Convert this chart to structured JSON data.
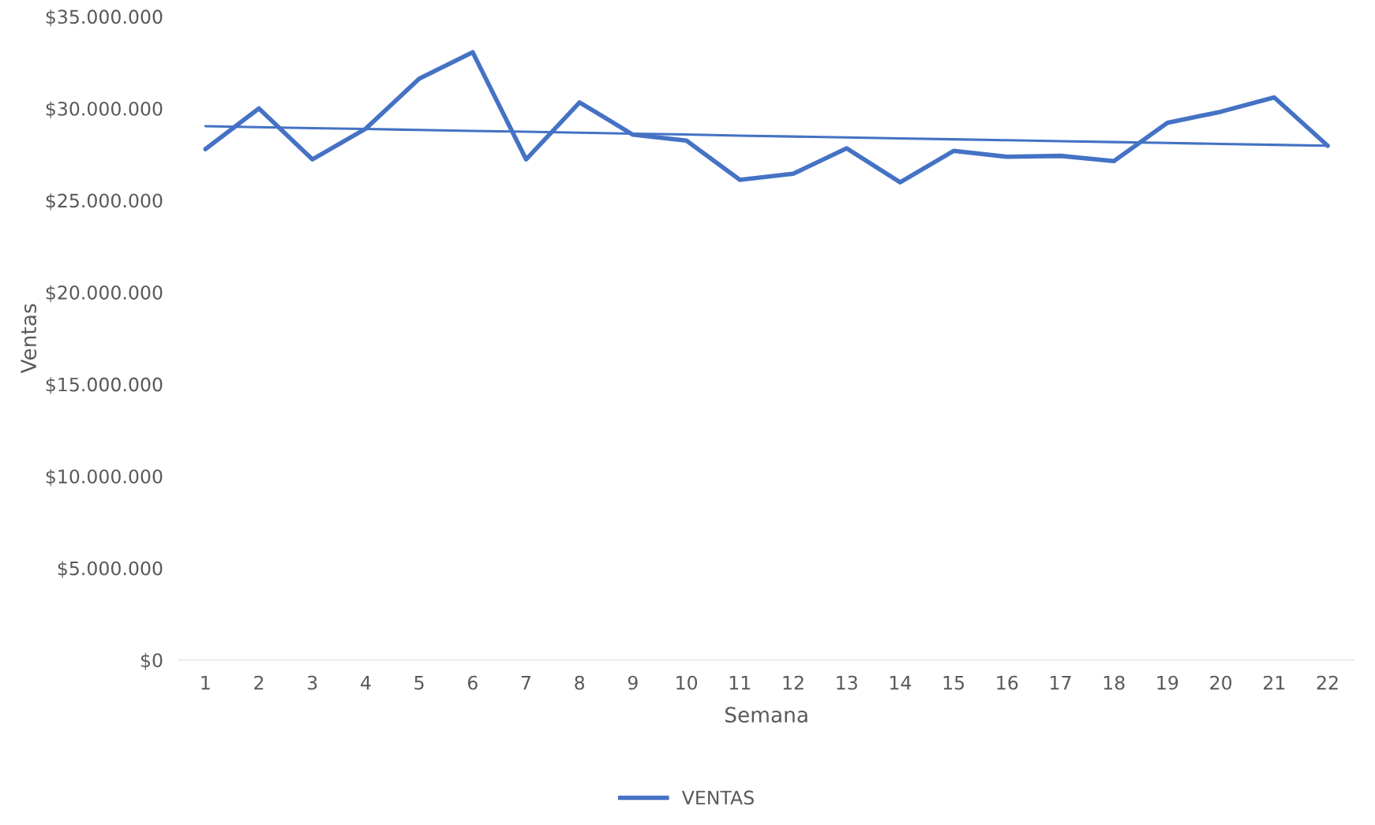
{
  "chart_data": {
    "type": "line",
    "xlabel": "Semana",
    "ylabel": "Ventas",
    "categories": [
      "1",
      "2",
      "3",
      "4",
      "5",
      "6",
      "7",
      "8",
      "9",
      "10",
      "11",
      "12",
      "13",
      "14",
      "15",
      "16",
      "17",
      "18",
      "19",
      "20",
      "21",
      "22"
    ],
    "series": [
      {
        "name": "VENTAS",
        "color": "#4472c4",
        "values": [
          27790000,
          30000000,
          27230000,
          28900000,
          31620000,
          33060000,
          27230000,
          30330000,
          28570000,
          28250000,
          26120000,
          26450000,
          27830000,
          25980000,
          27690000,
          27370000,
          27420000,
          27140000,
          29220000,
          29820000,
          30600000,
          27970000
        ]
      },
      {
        "type": "line",
        "color": "#4472c4",
        "values": [
          29030000,
          28980000,
          28930000,
          28880000,
          28830000,
          28780000,
          28730000,
          28680000,
          28630000,
          28580000,
          28520000,
          28470000,
          28420000,
          28370000,
          28320000,
          28270000,
          28220000,
          28170000,
          28120000,
          28070000,
          28020000,
          27970000
        ]
      }
    ],
    "ylim": [
      0,
      35000000
    ],
    "yticks": [
      {
        "value": 0,
        "label": "$0"
      },
      {
        "value": 5000000,
        "label": "$5.000.000"
      },
      {
        "value": 10000000,
        "label": "$10.000.000"
      },
      {
        "value": 15000000,
        "label": "$15.000.000"
      },
      {
        "value": 20000000,
        "label": "$20.000.000"
      },
      {
        "value": 25000000,
        "label": "$25.000.000"
      },
      {
        "value": 30000000,
        "label": "$30.000.000"
      },
      {
        "value": 35000000,
        "label": "$35.000.000"
      }
    ],
    "grid": false,
    "legend": "bottom",
    "marker": "none",
    "line_style": "solid"
  }
}
